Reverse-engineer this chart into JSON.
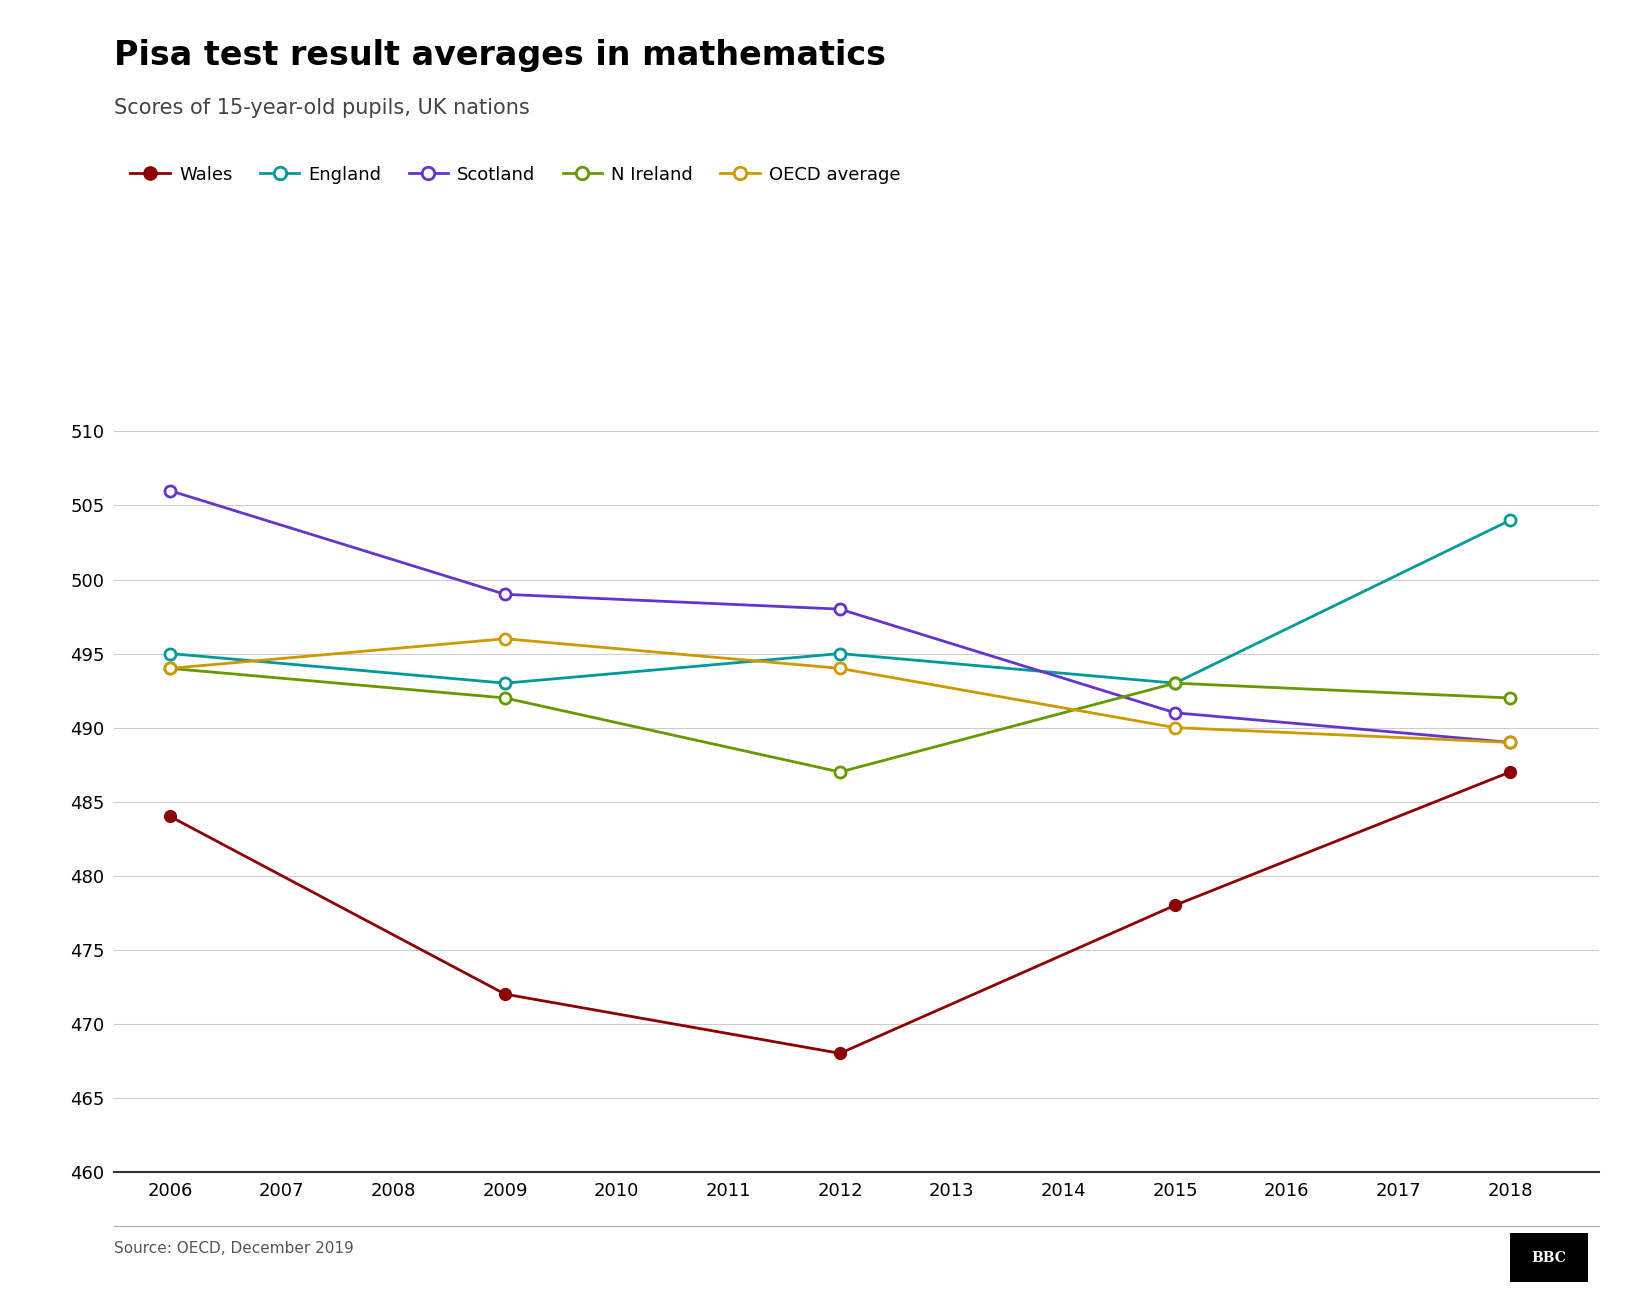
{
  "title": "Pisa test result averages in mathematics",
  "subtitle": "Scores of 15-year-old pupils, UK nations",
  "source": "Source: OECD, December 2019",
  "years": [
    2006,
    2009,
    2012,
    2015,
    2018
  ],
  "series": {
    "Wales": {
      "values": [
        484,
        472,
        468,
        478,
        487
      ],
      "color": "#8B0000",
      "marker_filled": true,
      "linewidth": 2.0
    },
    "England": {
      "values": [
        495,
        493,
        495,
        493,
        504
      ],
      "color": "#009999",
      "marker_filled": false,
      "linewidth": 2.0
    },
    "Scotland": {
      "values": [
        506,
        499,
        498,
        491,
        489
      ],
      "color": "#6633CC",
      "marker_filled": false,
      "linewidth": 2.0
    },
    "N Ireland": {
      "values": [
        494,
        492,
        487,
        493,
        492
      ],
      "color": "#669900",
      "marker_filled": false,
      "linewidth": 2.0
    },
    "OECD average": {
      "values": [
        494,
        496,
        494,
        490,
        489
      ],
      "color": "#CC9900",
      "marker_filled": false,
      "linewidth": 2.0
    }
  },
  "xlim": [
    2005.5,
    2018.8
  ],
  "ylim": [
    460,
    511
  ],
  "yticks": [
    460,
    465,
    470,
    475,
    480,
    485,
    490,
    495,
    500,
    505,
    510
  ],
  "xticks": [
    2006,
    2007,
    2008,
    2009,
    2010,
    2011,
    2012,
    2013,
    2014,
    2015,
    2016,
    2017,
    2018
  ],
  "background_color": "#FFFFFF",
  "grid_color": "#CCCCCC",
  "title_fontsize": 24,
  "subtitle_fontsize": 15,
  "axis_fontsize": 13,
  "legend_fontsize": 13,
  "source_fontsize": 11
}
